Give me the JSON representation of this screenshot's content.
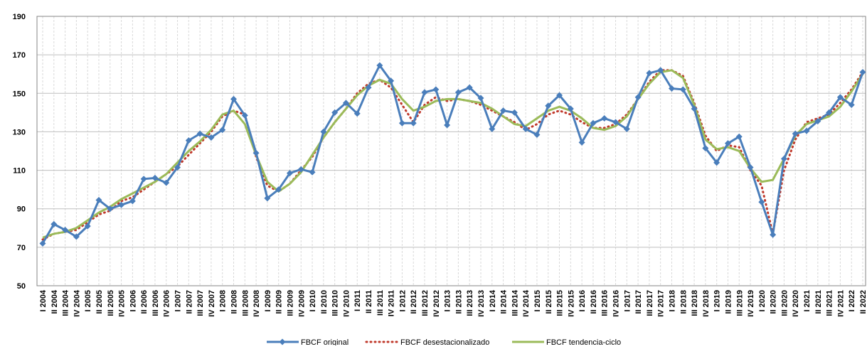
{
  "chart_data": {
    "type": "line",
    "categories": [
      "I 2004",
      "II 2004",
      "III 2004",
      "IV 2004",
      "I 2005",
      "II 2005",
      "III 2005",
      "IV 2005",
      "I 2006",
      "II 2006",
      "III 2006",
      "IV 2006",
      "I 2007",
      "II 2007",
      "III 2007",
      "IV 2007",
      "I 2008",
      "II 2008",
      "III 2008",
      "IV 2008",
      "I 2009",
      "II 2009",
      "III 2009",
      "IV 2009",
      "I 2010",
      "II 2010",
      "III 2010",
      "IV 2010",
      "I 2011",
      "II 2011",
      "III 2011",
      "IV 2011",
      "I 2012",
      "II 2012",
      "III 2012",
      "IV 2012",
      "I 2013",
      "II 2013",
      "III 2013",
      "IV 2013",
      "I 2014",
      "II 2014",
      "III 2014",
      "IV 2014",
      "I 2015",
      "II 2015",
      "III 2015",
      "IV 2015",
      "I 2016",
      "II 2016",
      "III 2016",
      "IV 2016",
      "I 2017",
      "II 2017",
      "III 2017",
      "IV 2017",
      "I 2018",
      "II 2018",
      "III 2018",
      "IV 2018",
      "I 2019",
      "II 2019",
      "III 2019",
      "IV 2019",
      "I 2020",
      "II 2020",
      "III 2020",
      "IV 2020",
      "I 2021",
      "II 2021",
      "III 2021",
      "IV 2021",
      "I 2022",
      "II 2022"
    ],
    "series": [
      {
        "name": "FBCF original",
        "color": "#4a7ebb",
        "style": "marker",
        "values": [
          72,
          82,
          79,
          75.5,
          81,
          94.5,
          90,
          92,
          94,
          105.5,
          106,
          103.5,
          111.5,
          125.5,
          129,
          127,
          131,
          147,
          138.5,
          119,
          95.5,
          100,
          108.5,
          110.5,
          109,
          130,
          140,
          145,
          139.5,
          153,
          164.5,
          156.5,
          134.5,
          134.5,
          150.5,
          152,
          133.5,
          150.5,
          153,
          147.5,
          131.5,
          141,
          140,
          131.5,
          128.5,
          143.5,
          149,
          142,
          124.5,
          134.5,
          137,
          135,
          131.5,
          148,
          160.5,
          162,
          152.5,
          152,
          142,
          121.5,
          114,
          124,
          127.5,
          111.5,
          93.5,
          76.5,
          116,
          129,
          130.5,
          135.5,
          140,
          148,
          144,
          161
        ]
      },
      {
        "name": "FBCF desestacionalizado",
        "color": "#c0392b",
        "style": "dotted",
        "values": [
          74,
          77,
          78,
          79,
          83,
          87,
          89,
          94,
          96,
          100,
          104,
          108,
          112,
          118,
          124,
          130,
          138,
          141,
          139,
          117,
          102,
          99,
          103,
          110,
          117,
          127,
          135,
          142,
          150,
          155,
          157,
          153,
          144,
          135,
          144,
          148,
          146,
          147,
          146,
          144,
          141,
          138,
          135,
          131,
          134,
          139,
          141,
          139,
          135,
          132,
          132,
          134,
          139,
          147,
          156,
          162,
          162,
          159,
          145,
          128,
          120,
          123,
          122,
          110,
          102,
          77,
          110,
          126,
          135,
          137,
          139,
          145,
          152,
          161
        ]
      },
      {
        "name": "FBCF tendencia-ciclo",
        "color": "#9bbb59",
        "style": "solid",
        "values": [
          75,
          77,
          78,
          80,
          84,
          88,
          91,
          95,
          98,
          101,
          104,
          108,
          114,
          120,
          125,
          131,
          139,
          141,
          134,
          118,
          104,
          99,
          103,
          109,
          118,
          127,
          135,
          142,
          149,
          154,
          157,
          155,
          147,
          141,
          143,
          146,
          147,
          147,
          146,
          145,
          142,
          138,
          134,
          133,
          137,
          141,
          143,
          141,
          137,
          132,
          131,
          133,
          138,
          147,
          155,
          161,
          162,
          158,
          144,
          126,
          121,
          122,
          120,
          111,
          104,
          105,
          116,
          128,
          134,
          136,
          138,
          143,
          151,
          160
        ]
      }
    ],
    "ylim": [
      50,
      190
    ],
    "yticks": [
      50,
      70,
      90,
      110,
      130,
      150,
      170,
      190
    ],
    "grid": true,
    "legend": "bottom"
  }
}
